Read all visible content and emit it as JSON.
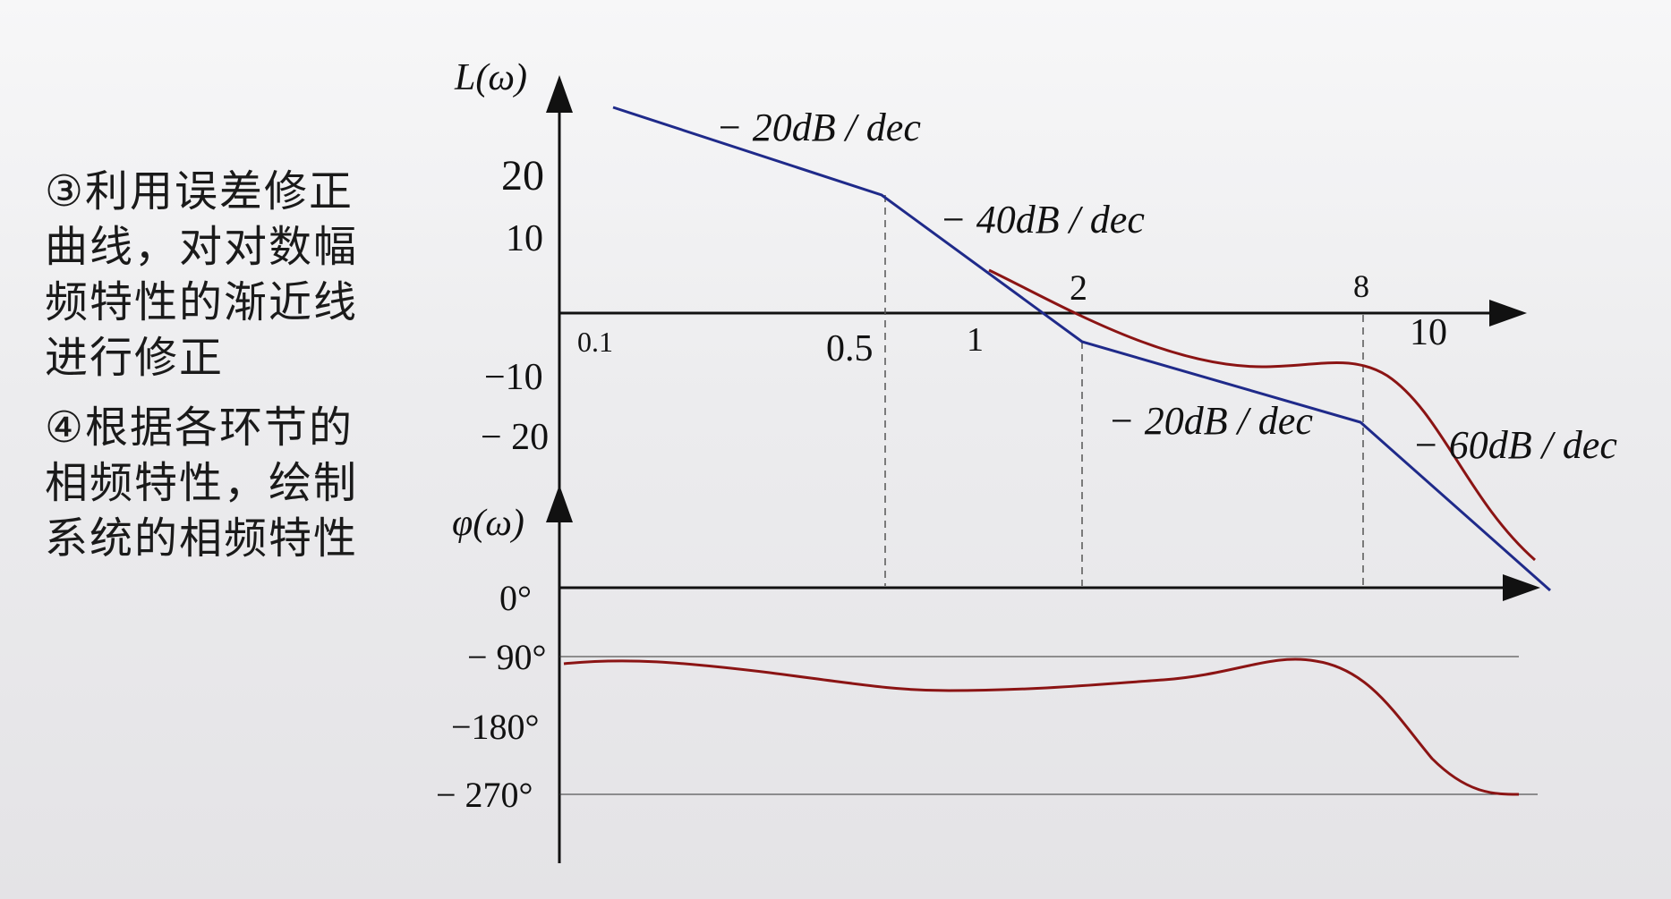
{
  "notes": [
    "③利用误差修正\n曲线，对对数幅\n频特性的渐近线\n进行修正",
    "④根据各环节的\n相频特性，绘制\n系统的相频特性"
  ],
  "magnitude": {
    "axis_label": "L(ω)",
    "y_ticks": [
      "20",
      "10",
      "−10",
      "− 20"
    ],
    "x_ticks": [
      "0.1",
      "0.5",
      "1",
      "2",
      "8",
      "10"
    ],
    "slopes": [
      "− 20dB / dec",
      "− 40dB / dec",
      "− 20dB / dec",
      "− 60dB / dec"
    ],
    "colors": {
      "asymptote": "#1f2a8a",
      "corrected": "#8b1414"
    }
  },
  "phase": {
    "axis_label": "φ(ω)",
    "y_ticks": [
      "0°",
      "− 90°",
      "−180°",
      "− 270°"
    ],
    "colors": {
      "curve": "#8b1414"
    }
  }
}
